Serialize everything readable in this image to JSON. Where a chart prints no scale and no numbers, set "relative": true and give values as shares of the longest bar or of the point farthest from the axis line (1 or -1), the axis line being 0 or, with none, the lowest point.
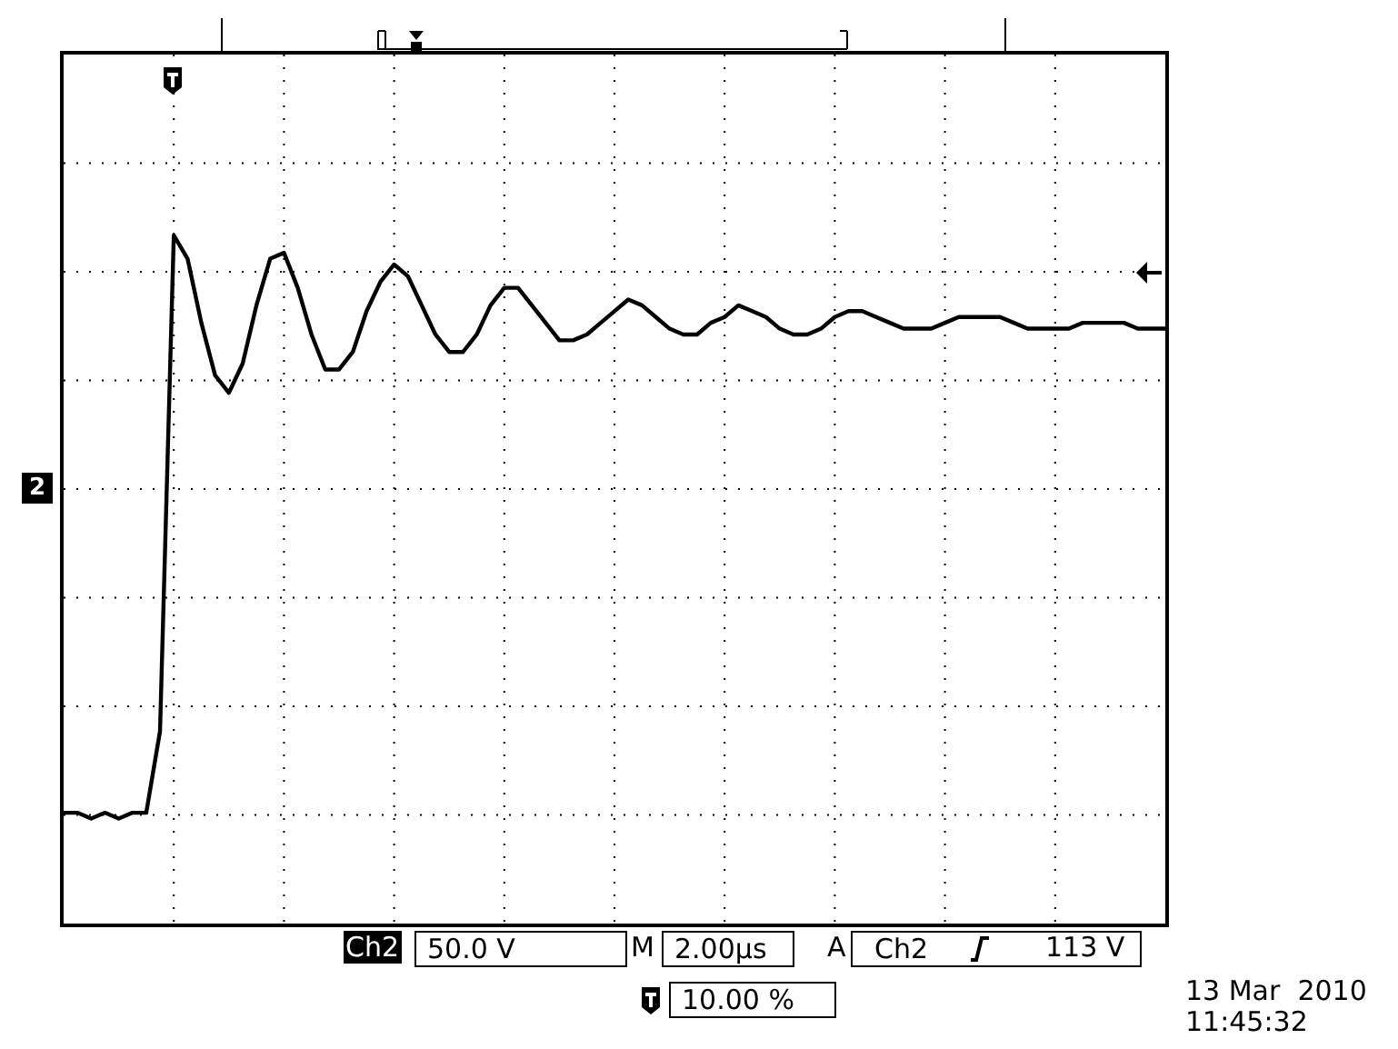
{
  "chart_data": {
    "type": "line",
    "relative": true,
    "grid": true,
    "tick_labels": false,
    "categories": [
      null,
      null,
      null,
      null,
      null,
      null,
      null,
      null,
      null,
      null,
      null,
      null,
      null,
      null,
      null,
      null,
      null,
      null,
      null,
      null,
      null,
      null,
      null,
      null,
      null,
      null,
      null,
      null,
      null,
      null,
      null,
      null,
      null,
      null,
      null,
      null,
      null,
      null,
      null,
      null,
      null,
      null,
      null,
      null,
      null,
      null,
      null,
      null,
      null,
      null,
      null,
      null,
      null,
      null,
      null,
      null,
      null,
      null,
      null,
      null,
      null,
      null,
      null,
      null,
      null,
      null,
      null,
      null,
      null,
      null,
      null,
      null,
      null,
      null,
      null,
      null,
      null,
      null,
      null,
      null,
      null
    ],
    "series": [
      {
        "color": "#000000",
        "values": [
          0.01,
          0.01,
          0,
          0.01,
          0,
          0.01,
          0.01,
          0.15,
          1,
          0.96,
          0.85,
          0.76,
          0.73,
          0.78,
          0.88,
          0.96,
          0.97,
          0.91,
          0.83,
          0.77,
          0.77,
          0.8,
          0.87,
          0.92,
          0.95,
          0.93,
          0.88,
          0.83,
          0.8,
          0.8,
          0.83,
          0.88,
          0.91,
          0.91,
          0.88,
          0.85,
          0.82,
          0.82,
          0.83,
          0.85,
          0.87,
          0.89,
          0.88,
          0.86,
          0.84,
          0.83,
          0.83,
          0.85,
          0.86,
          0.88,
          0.87,
          0.86,
          0.84,
          0.83,
          0.83,
          0.84,
          0.86,
          0.87,
          0.87,
          0.86,
          0.85,
          0.84,
          0.84,
          0.84,
          0.85,
          0.86,
          0.86,
          0.86,
          0.86,
          0.85,
          0.84,
          0.84,
          0.84,
          0.84,
          0.85,
          0.85,
          0.85,
          0.85,
          0.84,
          0.84,
          0.84
        ]
      }
    ],
    "marker": "none",
    "line_style": "solid",
    "annotations": [
      "2",
      "Ch2",
      "50.0 V",
      "M",
      "2.00µs",
      "A",
      "Ch2",
      "113 V",
      "10.00 %",
      "13 Mar  2010",
      "11:45:32"
    ]
  }
}
